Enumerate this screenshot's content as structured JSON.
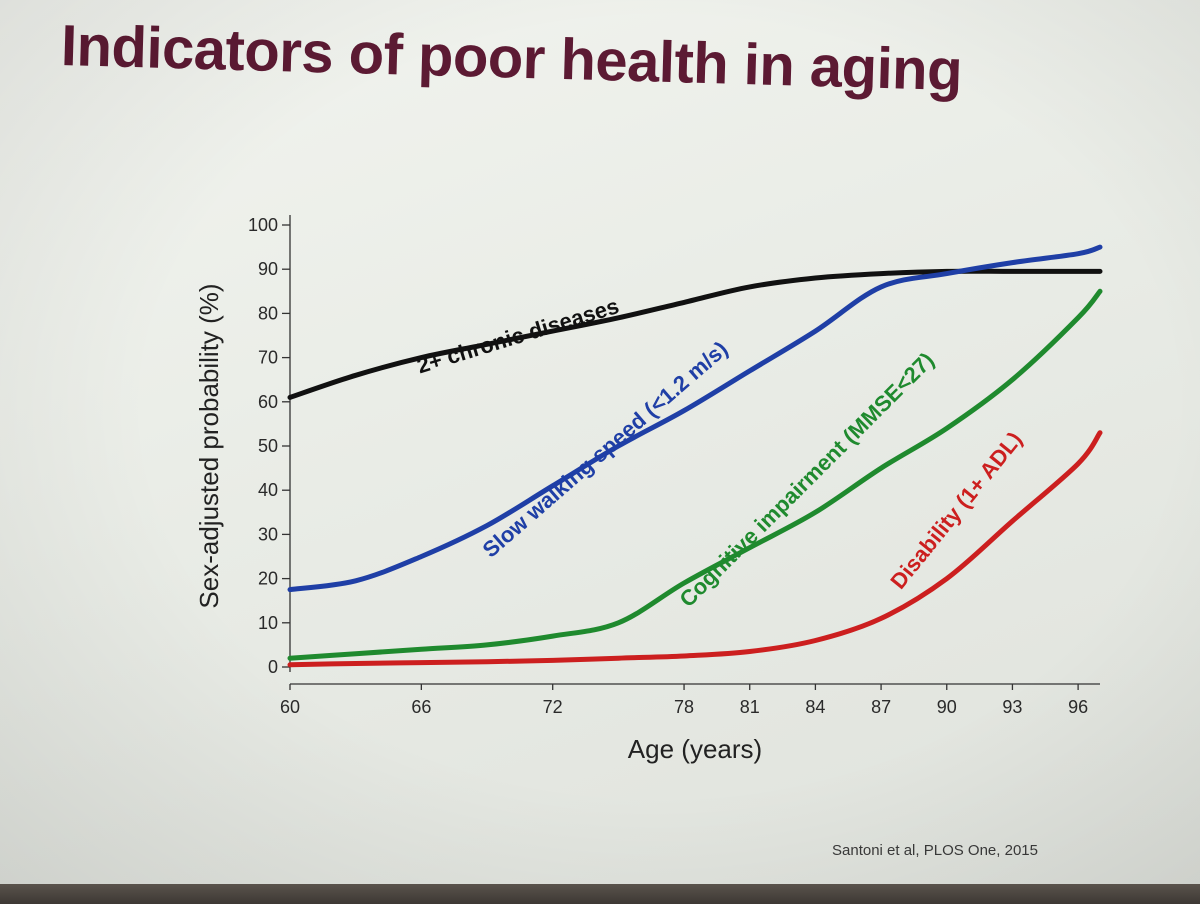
{
  "slide": {
    "title": "Indicators of poor health in aging",
    "citation": "Santoni et al, PLOS One, 2015"
  },
  "colors": {
    "title": "#5c1a33",
    "chronic": "#111111",
    "walking": "#1f3fa6",
    "cognitive": "#1f8a2e",
    "disability": "#cc1f1f"
  },
  "chart_data": {
    "type": "line",
    "title": "",
    "xlabel": "Age (years)",
    "ylabel": "Sex-adjusted probability (%)",
    "xlim": [
      60,
      97
    ],
    "ylim": [
      0,
      100
    ],
    "x_ticks": [
      60,
      66,
      72,
      78,
      81,
      84,
      87,
      90,
      93,
      96
    ],
    "y_ticks": [
      0,
      10,
      20,
      30,
      40,
      50,
      60,
      70,
      80,
      90,
      100
    ],
    "grid": false,
    "legend": "none",
    "series": [
      {
        "name": "2+ chronic diseases",
        "color": "#111111",
        "points": [
          [
            60,
            61
          ],
          [
            63,
            66
          ],
          [
            66,
            70
          ],
          [
            69,
            73
          ],
          [
            72,
            76
          ],
          [
            75,
            79
          ],
          [
            78,
            82.5
          ],
          [
            81,
            86
          ],
          [
            84,
            88
          ],
          [
            87,
            89
          ],
          [
            90,
            89.5
          ],
          [
            93,
            89.5
          ],
          [
            96,
            89.5
          ],
          [
            97,
            89.5
          ]
        ]
      },
      {
        "name": "Slow walking speed (<1.2 m/s)",
        "color": "#1f3fa6",
        "points": [
          [
            60,
            17.5
          ],
          [
            63,
            19.5
          ],
          [
            66,
            25
          ],
          [
            69,
            32
          ],
          [
            72,
            41
          ],
          [
            75,
            50
          ],
          [
            78,
            58
          ],
          [
            81,
            67
          ],
          [
            84,
            76
          ],
          [
            87,
            86
          ],
          [
            90,
            89
          ],
          [
            93,
            91.5
          ],
          [
            96,
            93.5
          ],
          [
            97,
            95
          ]
        ]
      },
      {
        "name": "Cognitive impairment (MMSE<27)",
        "color": "#1f8a2e",
        "points": [
          [
            60,
            2
          ],
          [
            63,
            3
          ],
          [
            66,
            4
          ],
          [
            69,
            5
          ],
          [
            72,
            7
          ],
          [
            75,
            10
          ],
          [
            78,
            19
          ],
          [
            81,
            27
          ],
          [
            84,
            35
          ],
          [
            87,
            45
          ],
          [
            90,
            54
          ],
          [
            93,
            65
          ],
          [
            96,
            79
          ],
          [
            97,
            85
          ]
        ]
      },
      {
        "name": "Disability (1+ ADL)",
        "color": "#cc1f1f",
        "points": [
          [
            60,
            0.5
          ],
          [
            63,
            0.8
          ],
          [
            66,
            1
          ],
          [
            69,
            1.2
          ],
          [
            72,
            1.5
          ],
          [
            75,
            2
          ],
          [
            78,
            2.5
          ],
          [
            81,
            3.5
          ],
          [
            84,
            6
          ],
          [
            87,
            11
          ],
          [
            90,
            20
          ],
          [
            93,
            33
          ],
          [
            96,
            46
          ],
          [
            97,
            53
          ]
        ]
      }
    ]
  }
}
